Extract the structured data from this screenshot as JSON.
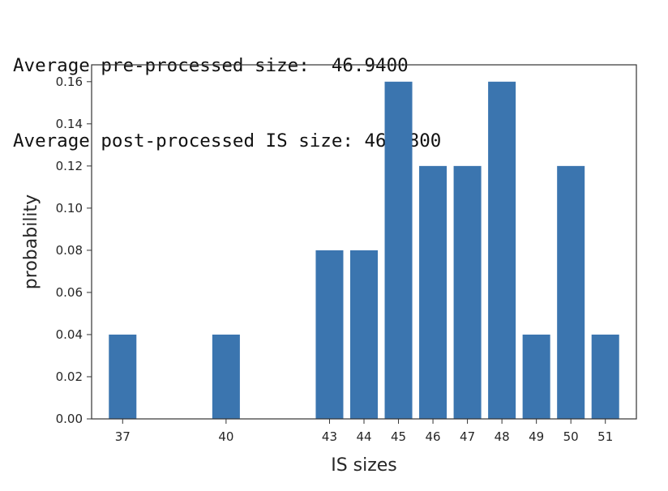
{
  "output": {
    "lines": [
      "Average pre-processed size:  46.9400",
      "Average post-processed IS size: 46.0800"
    ]
  },
  "chart_data": {
    "type": "bar",
    "categories": [
      "37",
      "40",
      "43",
      "44",
      "45",
      "46",
      "47",
      "48",
      "49",
      "50",
      "51"
    ],
    "x": [
      37,
      40,
      43,
      44,
      45,
      46,
      47,
      48,
      49,
      50,
      51
    ],
    "values": [
      0.04,
      0.04,
      0.08,
      0.08,
      0.16,
      0.12,
      0.12,
      0.16,
      0.04,
      0.12,
      0.04
    ],
    "xlabel": "IS sizes",
    "ylabel": "probability",
    "xlim": [
      36.1,
      51.9
    ],
    "ylim": [
      0,
      0.168
    ],
    "yticks": [
      "0.00",
      "0.02",
      "0.04",
      "0.06",
      "0.08",
      "0.10",
      "0.12",
      "0.14",
      "0.16"
    ],
    "ytick_values": [
      0,
      0.02,
      0.04,
      0.06,
      0.08,
      0.1,
      0.12,
      0.14,
      0.16
    ],
    "bar_color": "#3b75af",
    "grid": false
  }
}
